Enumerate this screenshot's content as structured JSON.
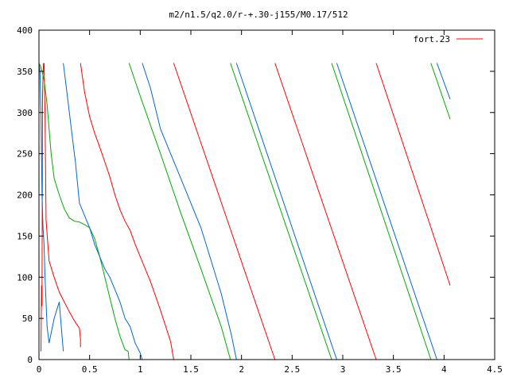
{
  "chart_data": {
    "type": "line",
    "title": "m2/n1.5/q2.0/r-+.30-j155/M0.17/512",
    "xlabel": "",
    "ylabel": "",
    "xlim": [
      0,
      4.5
    ],
    "ylim": [
      0,
      400
    ],
    "x_ticks": [
      {
        "value": 0,
        "label": "0"
      },
      {
        "value": 0.5,
        "label": "0.5"
      },
      {
        "value": 1,
        "label": "1"
      },
      {
        "value": 1.5,
        "label": "1.5"
      },
      {
        "value": 2,
        "label": "2"
      },
      {
        "value": 2.5,
        "label": "2.5"
      },
      {
        "value": 3,
        "label": "3"
      },
      {
        "value": 3.5,
        "label": "3.5"
      },
      {
        "value": 4,
        "label": "4"
      },
      {
        "value": 4.5,
        "label": "4.5"
      }
    ],
    "y_ticks": [
      {
        "value": 0,
        "label": "0"
      },
      {
        "value": 50,
        "label": "50"
      },
      {
        "value": 100,
        "label": "100"
      },
      {
        "value": 150,
        "label": "150"
      },
      {
        "value": 200,
        "label": "200"
      },
      {
        "value": 250,
        "label": "250"
      },
      {
        "value": 300,
        "label": "300"
      },
      {
        "value": 350,
        "label": "350"
      },
      {
        "value": 400,
        "label": "400"
      }
    ],
    "grid": false,
    "legend_position": "top-right",
    "legend": [
      {
        "label": "fort.23",
        "color": "#ff0000"
      }
    ],
    "series": [
      {
        "color": "#ff0000",
        "segments": [
          [
            [
              0.02,
              10
            ],
            [
              0.025,
              90
            ],
            [
              0.03,
              65
            ],
            [
              0.035,
              320
            ],
            [
              0.04,
              345
            ],
            [
              0.045,
              360
            ]
          ],
          [
            [
              0.05,
              360
            ],
            [
              0.06,
              300
            ],
            [
              0.07,
              170
            ],
            [
              0.1,
              120
            ],
            [
              0.15,
              100
            ],
            [
              0.2,
              82
            ],
            [
              0.25,
              70
            ],
            [
              0.3,
              58
            ],
            [
              0.35,
              47
            ],
            [
              0.4,
              38
            ],
            [
              0.41,
              25
            ],
            [
              0.41,
              15
            ]
          ],
          [
            [
              0.41,
              360
            ],
            [
              0.45,
              325
            ],
            [
              0.5,
              295
            ],
            [
              0.55,
              275
            ],
            [
              0.6,
              258
            ],
            [
              0.65,
              240
            ],
            [
              0.7,
              222
            ],
            [
              0.75,
              200
            ],
            [
              0.8,
              182
            ],
            [
              0.85,
              168
            ],
            [
              0.9,
              157
            ],
            [
              0.95,
              140
            ],
            [
              1.0,
              125
            ],
            [
              1.1,
              95
            ],
            [
              1.2,
              60
            ],
            [
              1.3,
              22
            ],
            [
              1.33,
              0
            ]
          ],
          [
            [
              1.33,
              360
            ],
            [
              2.33,
              0
            ]
          ],
          [
            [
              2.33,
              360
            ],
            [
              3.33,
              0
            ]
          ],
          [
            [
              3.33,
              360
            ],
            [
              4.06,
              90
            ]
          ]
        ]
      },
      {
        "color": "#00aa00",
        "segments": [
          [
            [
              0.0,
              360
            ],
            [
              0.02,
              355
            ],
            [
              0.05,
              340
            ],
            [
              0.08,
              310
            ],
            [
              0.1,
              280
            ],
            [
              0.12,
              250
            ],
            [
              0.15,
              220
            ],
            [
              0.2,
              200
            ],
            [
              0.25,
              183
            ],
            [
              0.3,
              172
            ],
            [
              0.35,
              168
            ],
            [
              0.4,
              167
            ],
            [
              0.45,
              164
            ],
            [
              0.5,
              160
            ],
            [
              0.55,
              147
            ],
            [
              0.6,
              125
            ],
            [
              0.65,
              100
            ],
            [
              0.7,
              75
            ],
            [
              0.75,
              50
            ],
            [
              0.8,
              28
            ],
            [
              0.85,
              12
            ],
            [
              0.88,
              10
            ],
            [
              0.89,
              0
            ]
          ],
          [
            [
              0.89,
              360
            ],
            [
              1.0,
              320
            ],
            [
              1.2,
              250
            ],
            [
              1.4,
              178
            ],
            [
              1.6,
              110
            ],
            [
              1.8,
              40
            ],
            [
              1.89,
              0
            ]
          ],
          [
            [
              1.89,
              360
            ],
            [
              2.89,
              0
            ]
          ],
          [
            [
              2.89,
              360
            ],
            [
              3.87,
              0
            ]
          ],
          [
            [
              3.87,
              360
            ],
            [
              4.06,
              292
            ]
          ]
        ]
      },
      {
        "color": "#0066cc",
        "segments": [
          [
            [
              0.0,
              360
            ],
            [
              0.01,
              350
            ],
            [
              0.02,
              300
            ],
            [
              0.03,
              200
            ],
            [
              0.04,
              160
            ],
            [
              0.05,
              140
            ],
            [
              0.06,
              100
            ],
            [
              0.08,
              40
            ],
            [
              0.1,
              20
            ],
            [
              0.15,
              50
            ],
            [
              0.2,
              70
            ],
            [
              0.24,
              10
            ]
          ],
          [
            [
              0.24,
              360
            ],
            [
              0.28,
              320
            ],
            [
              0.32,
              280
            ],
            [
              0.36,
              240
            ],
            [
              0.4,
              190
            ],
            [
              0.45,
              175
            ],
            [
              0.5,
              160
            ],
            [
              0.55,
              140
            ],
            [
              0.6,
              125
            ],
            [
              0.65,
              110
            ],
            [
              0.7,
              100
            ],
            [
              0.75,
              85
            ],
            [
              0.8,
              70
            ],
            [
              0.85,
              50
            ],
            [
              0.9,
              40
            ],
            [
              0.95,
              20
            ],
            [
              1.0,
              8
            ],
            [
              1.02,
              0
            ]
          ],
          [
            [
              1.02,
              360
            ],
            [
              1.1,
              330
            ],
            [
              1.2,
              280
            ],
            [
              1.3,
              250
            ],
            [
              1.4,
              220
            ],
            [
              1.5,
              190
            ],
            [
              1.6,
              160
            ],
            [
              1.7,
              120
            ],
            [
              1.8,
              80
            ],
            [
              1.9,
              30
            ],
            [
              1.95,
              0
            ]
          ],
          [
            [
              1.95,
              360
            ],
            [
              2.94,
              0
            ]
          ],
          [
            [
              2.94,
              360
            ],
            [
              3.93,
              0
            ]
          ],
          [
            [
              3.93,
              360
            ],
            [
              4.06,
              316
            ]
          ]
        ]
      }
    ]
  }
}
